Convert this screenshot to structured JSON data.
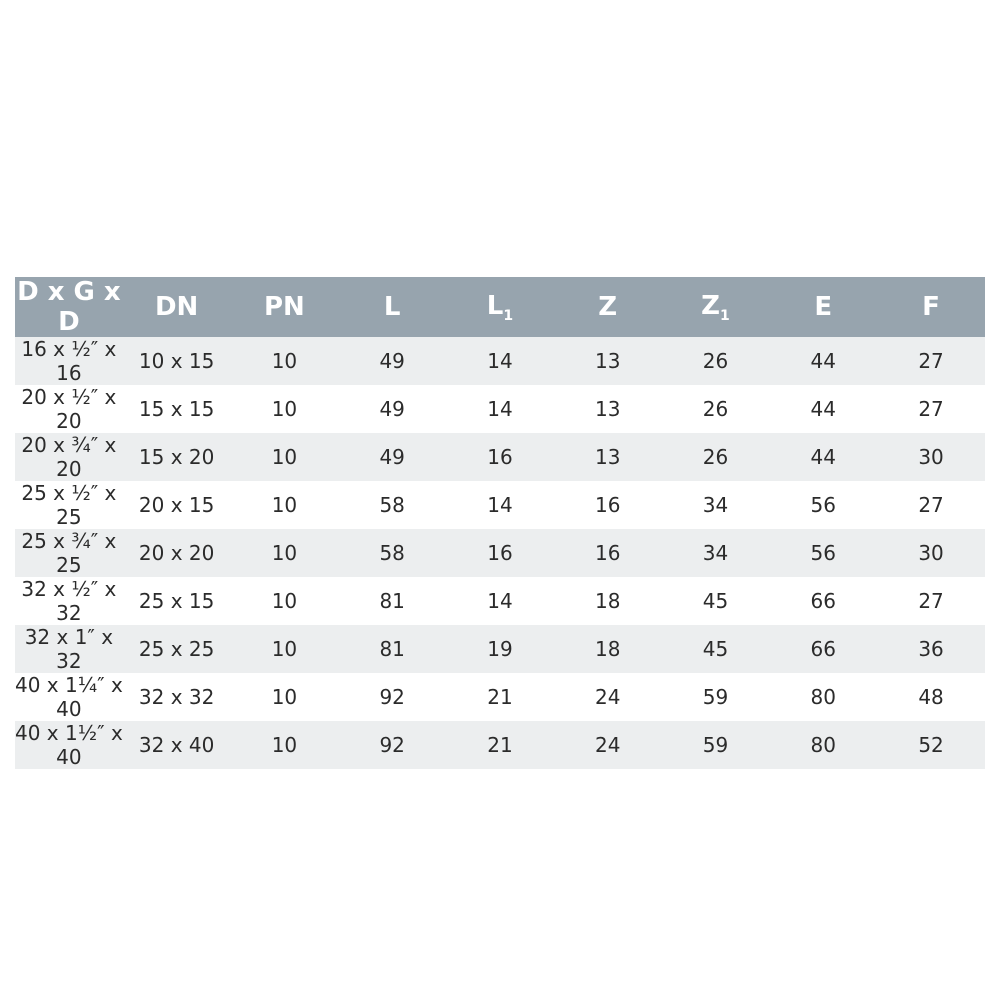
{
  "table": {
    "header_bg": "#97a4ae",
    "row_alt_bg": "#eceeef",
    "columns": [
      {
        "label": "D x G x D",
        "sub": ""
      },
      {
        "label": "DN",
        "sub": ""
      },
      {
        "label": "PN",
        "sub": ""
      },
      {
        "label": "L",
        "sub": ""
      },
      {
        "label": "L",
        "sub": "1"
      },
      {
        "label": "Z",
        "sub": ""
      },
      {
        "label": "Z",
        "sub": "1"
      },
      {
        "label": "E",
        "sub": ""
      },
      {
        "label": "F",
        "sub": ""
      }
    ],
    "rows": [
      [
        "16 x ½″ x 16",
        "10 x 15",
        "10",
        "49",
        "14",
        "13",
        "26",
        "44",
        "27"
      ],
      [
        "20 x ½″ x 20",
        "15 x 15",
        "10",
        "49",
        "14",
        "13",
        "26",
        "44",
        "27"
      ],
      [
        "20 x ¾″ x 20",
        "15 x 20",
        "10",
        "49",
        "16",
        "13",
        "26",
        "44",
        "30"
      ],
      [
        "25 x ½″ x 25",
        "20 x 15",
        "10",
        "58",
        "14",
        "16",
        "34",
        "56",
        "27"
      ],
      [
        "25 x ¾″ x 25",
        "20 x 20",
        "10",
        "58",
        "16",
        "16",
        "34",
        "56",
        "30"
      ],
      [
        "32 x ½″ x 32",
        "25 x 15",
        "10",
        "81",
        "14",
        "18",
        "45",
        "66",
        "27"
      ],
      [
        "32 x 1″ x 32",
        "25 x 25",
        "10",
        "81",
        "19",
        "18",
        "45",
        "66",
        "36"
      ],
      [
        "40 x 1¼″ x 40",
        "32 x 32",
        "10",
        "92",
        "21",
        "24",
        "59",
        "80",
        "48"
      ],
      [
        "40 x 1½″ x 40",
        "32 x 40",
        "10",
        "92",
        "21",
        "24",
        "59",
        "80",
        "52"
      ]
    ]
  }
}
